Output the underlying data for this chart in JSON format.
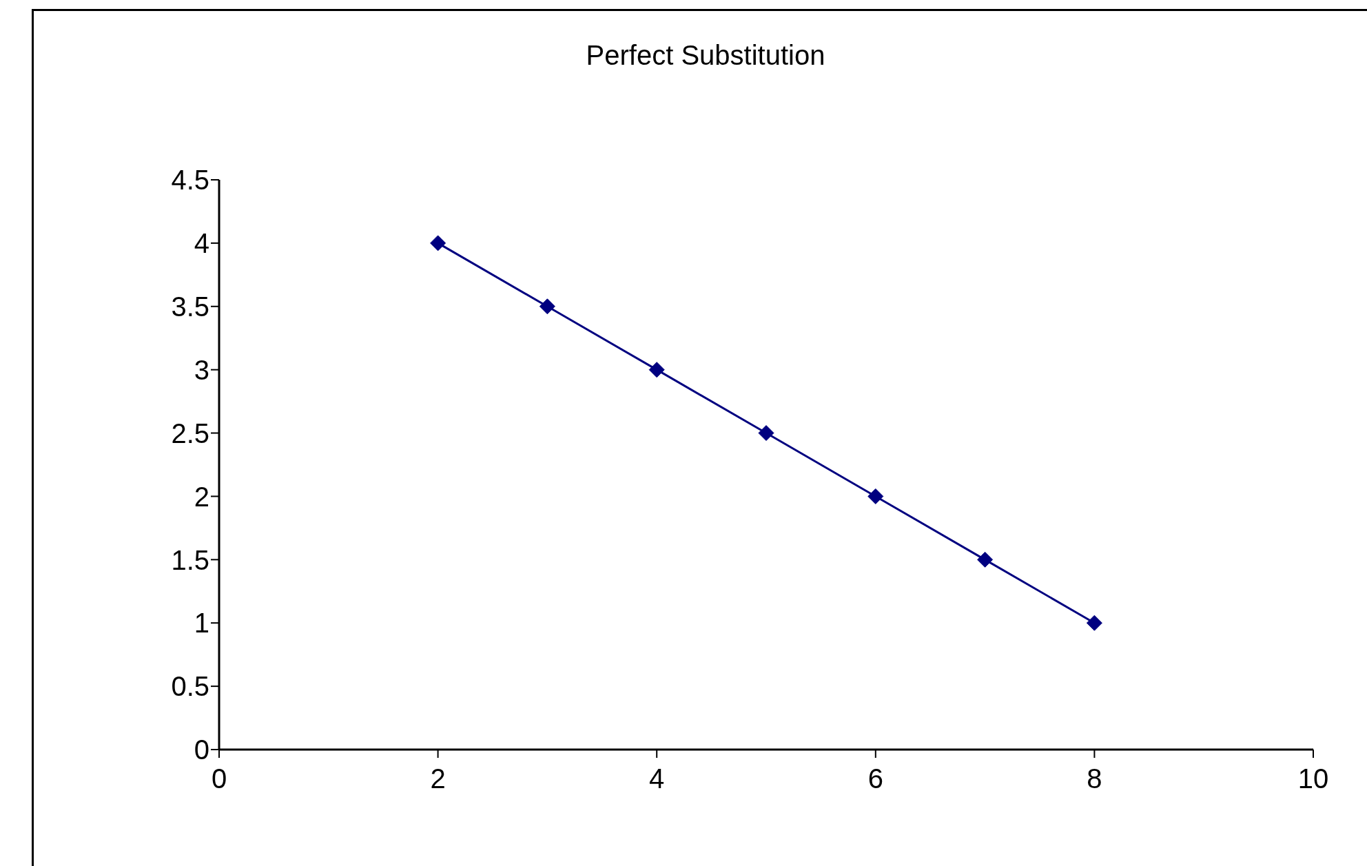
{
  "chart_data": {
    "type": "line",
    "title": "Perfect Substitution",
    "x": [
      2,
      3,
      4,
      5,
      6,
      7,
      8
    ],
    "series": [
      {
        "color": "#000080",
        "values": [
          4,
          3.5,
          3,
          2.5,
          2,
          1.5,
          1
        ]
      }
    ],
    "xlim": [
      0,
      10
    ],
    "xticks": [
      0,
      2,
      4,
      6,
      8,
      10
    ],
    "ylim": [
      0,
      4.5
    ],
    "yticks": [
      0,
      0.5,
      1,
      1.5,
      2,
      2.5,
      3,
      3.5,
      4,
      4.5
    ],
    "grid": false,
    "legend": false,
    "marker": "diamond",
    "line_style": "solid"
  }
}
